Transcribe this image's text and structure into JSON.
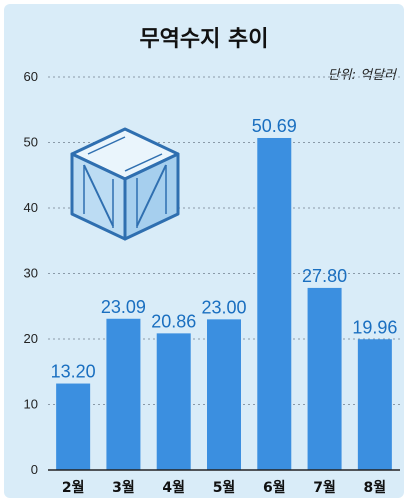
{
  "chart_data": {
    "type": "bar",
    "title": "무역수지 추이",
    "unit_label": "단위: 억달러",
    "categories": [
      "2월",
      "3월",
      "4월",
      "5월",
      "6월",
      "7월",
      "8월"
    ],
    "values": [
      13.2,
      23.09,
      20.86,
      23.0,
      50.69,
      27.8,
      19.96
    ],
    "value_labels": [
      "13.20",
      "23.09",
      "20.86",
      "23.00",
      "50.69",
      "27.80",
      "19.96"
    ],
    "yticks": [
      "0",
      "10",
      "20",
      "30",
      "40",
      "50",
      "60"
    ],
    "ylim": [
      0,
      60
    ],
    "grid": true,
    "bar_color": "#3b8fe0",
    "label_color": "#1a6fc0",
    "background_color": "#d9ecf8"
  },
  "decoration": {
    "icon": "wooden-crate-icon"
  }
}
